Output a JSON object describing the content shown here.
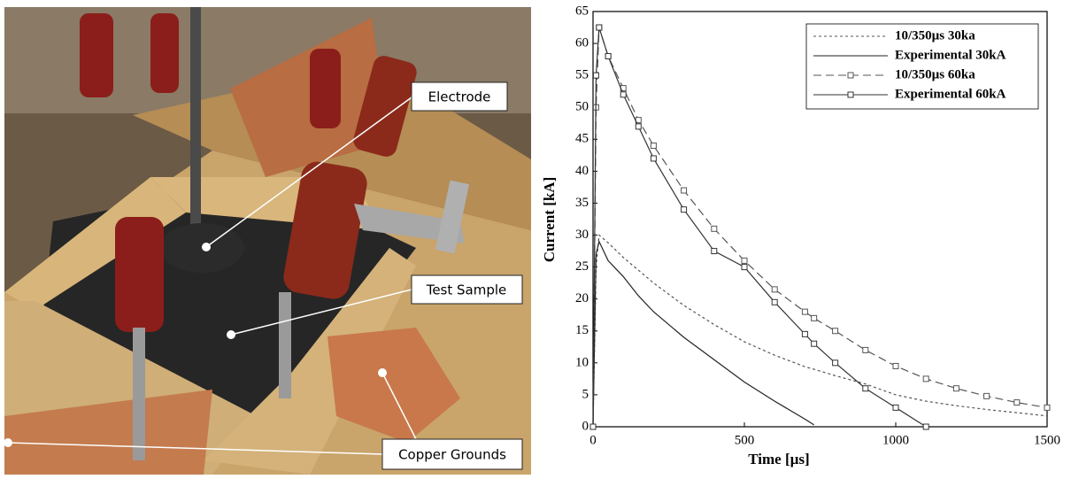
{
  "photo": {
    "labels": [
      "Electrode",
      "Test Sample",
      "Copper Grounds"
    ]
  },
  "chart_data": {
    "type": "line",
    "xlabel": "Time [µs]",
    "ylabel": "Current [kA]",
    "x": [
      0,
      10,
      20,
      50,
      100,
      150,
      200,
      300,
      400,
      500,
      600,
      700,
      730,
      800,
      900,
      1000,
      1100,
      1200,
      1300,
      1400,
      1500
    ],
    "series": [
      {
        "name": "10/350µs 30ka",
        "color": "#555555",
        "dash": "3,3",
        "marker": false,
        "values": [
          0,
          25,
          30,
          28.8,
          26.5,
          24.5,
          22.5,
          19,
          16,
          13.3,
          11.2,
          9.4,
          9,
          8,
          6.7,
          5,
          4,
          3.3,
          2.7,
          2.2,
          1.7
        ]
      },
      {
        "name": "Experimental 30kA",
        "color": "#222222",
        "dash": "",
        "marker": false,
        "values": [
          0,
          27,
          29,
          26,
          23.5,
          20.5,
          18,
          14,
          10.5,
          7,
          4,
          1.2,
          0.3,
          null,
          null,
          null,
          null,
          null,
          null,
          null,
          null
        ]
      },
      {
        "name": "10/350µs 60ka",
        "color": "#555555",
        "dash": "9,5",
        "marker": true,
        "values": [
          0,
          50,
          62.5,
          58,
          53,
          48,
          44,
          37,
          31,
          26,
          21.5,
          18,
          17,
          15,
          12,
          9.5,
          7.5,
          6,
          4.8,
          3.8,
          3
        ]
      },
      {
        "name": "Experimental 60kA",
        "color": "#333333",
        "dash": "",
        "marker": true,
        "values": [
          0,
          55,
          62.5,
          58,
          52,
          47,
          42,
          34,
          27.5,
          25,
          19.5,
          14.5,
          13,
          10,
          6,
          3,
          0,
          null,
          null,
          null,
          null
        ]
      }
    ],
    "xlim": [
      0,
      1500
    ],
    "ylim": [
      0,
      65
    ],
    "xticks": [
      0,
      500,
      1000,
      1500
    ],
    "yticks": [
      0,
      5,
      10,
      15,
      20,
      25,
      30,
      35,
      40,
      45,
      50,
      55,
      60,
      65
    ],
    "legend": "upper right"
  }
}
